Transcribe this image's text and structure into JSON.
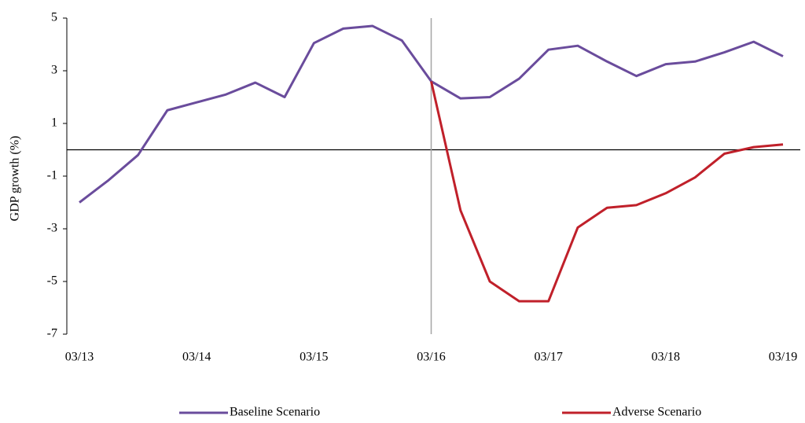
{
  "chart_data": {
    "type": "line",
    "y_label": "GDP  growth (%)",
    "categories": [
      "03/13",
      null,
      null,
      null,
      "03/14",
      null,
      null,
      null,
      "03/15",
      null,
      null,
      null,
      "03/16",
      null,
      null,
      null,
      "03/17",
      null,
      null,
      null,
      "03/18",
      null,
      null,
      null,
      "03/19"
    ],
    "series": [
      {
        "name": "Baseline Scenario",
        "color": "#6a4c9c",
        "values": [
          -2.0,
          -1.15,
          -0.2,
          1.5,
          1.8,
          2.1,
          2.55,
          2.0,
          4.05,
          4.6,
          4.7,
          4.15,
          2.6,
          1.95,
          2.0,
          2.7,
          3.8,
          3.95,
          3.35,
          2.8,
          3.25,
          3.35,
          3.7,
          4.1,
          3.55
        ]
      },
      {
        "name": "Adverse Scenario",
        "color": "#c0202a",
        "values": [
          null,
          null,
          null,
          null,
          null,
          null,
          null,
          null,
          null,
          null,
          null,
          null,
          2.6,
          -2.3,
          -5.0,
          -5.75,
          -5.75,
          -2.95,
          -2.2,
          -2.1,
          -1.65,
          -1.05,
          -0.15,
          0.1,
          0.2
        ]
      }
    ],
    "ylim": [
      -7,
      5
    ],
    "yticks": [
      5,
      3,
      1,
      -1,
      -3,
      -5,
      -7
    ]
  }
}
